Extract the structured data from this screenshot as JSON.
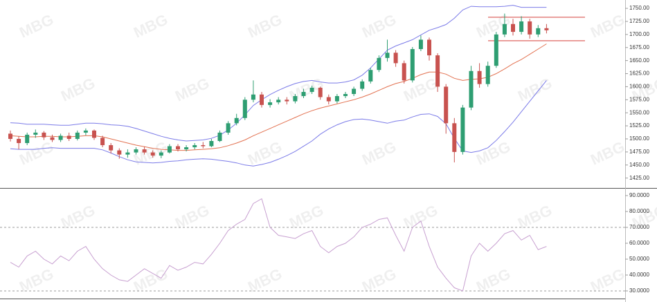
{
  "watermark": "MBG",
  "chart_data": [
    {
      "type": "candlestick",
      "up_color": "#2e9e72",
      "down_color": "#c8524f",
      "open": [
        1510,
        1500,
        1492,
        1508,
        1512,
        1503,
        1498,
        1506,
        1500,
        1512,
        1516,
        1502,
        1488,
        1478,
        1470,
        1474,
        1480,
        1474,
        1468,
        1474,
        1486,
        1480,
        1484,
        1488,
        1486,
        1496,
        1512,
        1530,
        1540,
        1575,
        1585,
        1565,
        1570,
        1575,
        1572,
        1582,
        1590,
        1598,
        1580,
        1572,
        1582,
        1586,
        1596,
        1610,
        1632,
        1655,
        1665,
        1645,
        1612,
        1672,
        1690,
        1660,
        1600,
        1530,
        1475,
        1560,
        1630,
        1605,
        1640,
        1700,
        1720,
        1705,
        1725,
        1700,
        1712
      ],
      "high": [
        1516,
        1505,
        1512,
        1518,
        1515,
        1508,
        1510,
        1512,
        1516,
        1520,
        1518,
        1506,
        1492,
        1482,
        1480,
        1484,
        1485,
        1478,
        1478,
        1490,
        1490,
        1488,
        1492,
        1494,
        1500,
        1516,
        1534,
        1548,
        1580,
        1612,
        1590,
        1576,
        1580,
        1580,
        1586,
        1596,
        1602,
        1600,
        1585,
        1586,
        1590,
        1600,
        1614,
        1636,
        1660,
        1690,
        1670,
        1650,
        1676,
        1698,
        1694,
        1664,
        1605,
        1540,
        1565,
        1640,
        1645,
        1648,
        1705,
        1740,
        1730,
        1735,
        1730,
        1718,
        1720
      ],
      "low": [
        1495,
        1480,
        1488,
        1502,
        1498,
        1494,
        1494,
        1496,
        1497,
        1507,
        1498,
        1484,
        1472,
        1462,
        1464,
        1470,
        1470,
        1464,
        1463,
        1472,
        1476,
        1476,
        1480,
        1482,
        1484,
        1494,
        1508,
        1526,
        1536,
        1570,
        1560,
        1560,
        1566,
        1566,
        1568,
        1578,
        1586,
        1575,
        1566,
        1568,
        1578,
        1582,
        1592,
        1606,
        1628,
        1648,
        1638,
        1606,
        1608,
        1668,
        1650,
        1590,
        1510,
        1455,
        1470,
        1555,
        1598,
        1600,
        1636,
        1695,
        1698,
        1700,
        1692,
        1695,
        1702
      ],
      "close": [
        1500,
        1492,
        1508,
        1512,
        1503,
        1498,
        1506,
        1500,
        1512,
        1516,
        1502,
        1488,
        1478,
        1470,
        1474,
        1480,
        1474,
        1468,
        1474,
        1486,
        1480,
        1484,
        1488,
        1486,
        1496,
        1512,
        1530,
        1540,
        1575,
        1585,
        1565,
        1570,
        1575,
        1572,
        1582,
        1590,
        1598,
        1580,
        1572,
        1582,
        1586,
        1596,
        1610,
        1632,
        1655,
        1665,
        1645,
        1612,
        1672,
        1690,
        1660,
        1600,
        1530,
        1475,
        1560,
        1630,
        1605,
        1640,
        1700,
        1720,
        1705,
        1725,
        1700,
        1712,
        1708
      ],
      "series": [
        {
          "color": "#7a7ae8",
          "values": [
            1531,
            1530,
            1528,
            1528,
            1528,
            1527,
            1526,
            1526,
            1528,
            1530,
            1530,
            1529,
            1527,
            1526,
            1524,
            1520,
            1515,
            1510,
            1505,
            1501,
            1498,
            1496,
            1497,
            1498,
            1501,
            1507,
            1517,
            1530,
            1546,
            1564,
            1575,
            1585,
            1593,
            1600,
            1606,
            1610,
            1612,
            1609,
            1607,
            1607,
            1609,
            1613,
            1622,
            1636,
            1653,
            1670,
            1678,
            1684,
            1690,
            1699,
            1708,
            1713,
            1719,
            1731,
            1747,
            1754,
            1753,
            1753,
            1753,
            1754,
            1756,
            1752,
            1752,
            1752,
            1752
          ]
        },
        {
          "color": "#e2704f",
          "values": [
            1506,
            1505,
            1504,
            1504,
            1505,
            1505,
            1504,
            1504,
            1505,
            1506,
            1506,
            1504,
            1500,
            1496,
            1492,
            1488,
            1485,
            1482,
            1480,
            1479,
            1478,
            1478,
            1479,
            1480,
            1481,
            1483,
            1487,
            1492,
            1498,
            1506,
            1513,
            1520,
            1527,
            1534,
            1541,
            1548,
            1554,
            1559,
            1563,
            1567,
            1571,
            1575,
            1580,
            1586,
            1593,
            1600,
            1606,
            1610,
            1616,
            1623,
            1628,
            1628,
            1624,
            1616,
            1612,
            1614,
            1615,
            1618,
            1625,
            1634,
            1644,
            1652,
            1662,
            1672,
            1682
          ]
        },
        {
          "color": "#7a7ae8",
          "values": [
            1481,
            1480,
            1480,
            1480,
            1482,
            1483,
            1482,
            1482,
            1482,
            1482,
            1482,
            1479,
            1473,
            1466,
            1460,
            1456,
            1455,
            1454,
            1455,
            1457,
            1458,
            1460,
            1461,
            1462,
            1461,
            1459,
            1457,
            1454,
            1450,
            1448,
            1451,
            1455,
            1461,
            1468,
            1476,
            1486,
            1496,
            1509,
            1519,
            1527,
            1533,
            1537,
            1538,
            1536,
            1533,
            1530,
            1534,
            1536,
            1542,
            1547,
            1548,
            1543,
            1529,
            1501,
            1477,
            1474,
            1477,
            1483,
            1497,
            1514,
            1532,
            1552,
            1572,
            1592,
            1612
          ]
        }
      ],
      "levels": [
        1733,
        1688
      ],
      "level_color": "#d9534f",
      "ylim": [
        1406,
        1766
      ],
      "yticks": [
        {
          "value": 1425,
          "label": "1425.00"
        },
        {
          "value": 1450,
          "label": "1450.00"
        },
        {
          "value": 1475,
          "label": "1475.00"
        },
        {
          "value": 1500,
          "label": "1500.00"
        },
        {
          "value": 1525,
          "label": "1525.00"
        },
        {
          "value": 1550,
          "label": "1550.00"
        },
        {
          "value": 1575,
          "label": "1575.00"
        },
        {
          "value": 1600,
          "label": "1600.00"
        },
        {
          "value": 1625,
          "label": "1625.00"
        },
        {
          "value": 1650,
          "label": "1650.00"
        },
        {
          "value": 1675,
          "label": "1675.00"
        },
        {
          "value": 1700,
          "label": "1700.00"
        },
        {
          "value": 1725,
          "label": "1725.00"
        },
        {
          "value": 1750,
          "label": "1750.00"
        }
      ]
    },
    {
      "type": "line",
      "series": [
        {
          "color": "#c79fd0",
          "values": [
            48,
            45,
            52,
            55,
            50,
            47,
            52,
            49,
            55,
            58,
            50,
            44,
            40,
            37,
            36,
            40,
            44,
            41,
            38,
            46,
            43,
            45,
            48,
            47,
            53,
            60,
            68,
            72,
            75,
            85,
            88,
            70,
            65,
            64,
            63,
            66,
            68,
            58,
            54,
            58,
            60,
            64,
            70,
            72,
            75,
            76,
            65,
            55,
            70,
            74,
            58,
            45,
            38,
            32,
            30,
            52,
            60,
            55,
            60,
            66,
            68,
            62,
            65,
            56,
            58
          ]
        }
      ],
      "reference_lines": [
        70,
        30
      ],
      "ylim": [
        25.2,
        93.5
      ],
      "yticks": [
        {
          "value": 30,
          "label": "30.0000"
        },
        {
          "value": 40,
          "label": "40.0000"
        },
        {
          "value": 50,
          "label": "50.0000"
        },
        {
          "value": 60,
          "label": "60.0000"
        },
        {
          "value": 70,
          "label": "70.0000"
        },
        {
          "value": 80,
          "label": "80.0000"
        },
        {
          "value": 90,
          "label": "90.0000"
        }
      ]
    }
  ]
}
